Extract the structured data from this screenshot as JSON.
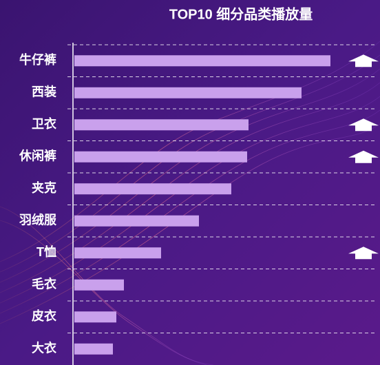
{
  "chart_data": {
    "type": "bar",
    "orientation": "horizontal",
    "title": "TOP10 细分品类播放量",
    "categories": [
      "牛仔裤",
      "西装",
      "卫衣",
      "休闲裤",
      "夹克",
      "羽绒服",
      "T恤",
      "毛衣",
      "皮衣",
      "大衣"
    ],
    "values": [
      372,
      330,
      253,
      251,
      228,
      181,
      126,
      72,
      61,
      56
    ],
    "up_arrow": [
      true,
      false,
      true,
      true,
      false,
      false,
      true,
      false,
      false,
      false
    ],
    "color": "#c9a0ec"
  }
}
